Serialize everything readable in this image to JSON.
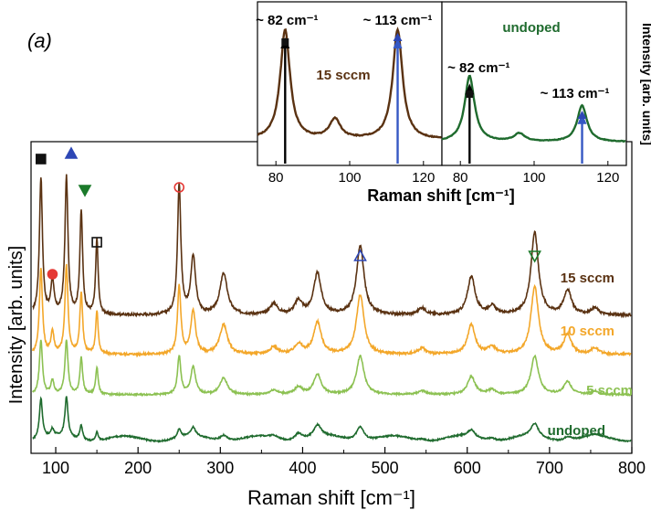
{
  "panel_label": "(a)",
  "colors": {
    "15 sccm": "#5a3212",
    "10 sccm": "#f3a72a",
    "5 sccm": "#8cc152",
    "undoped": "#1f6b2e",
    "square": "#111111",
    "circle": "#e53935",
    "triangle": "#2d47b5",
    "triangle_down": "#1b7a2a",
    "arrow_black": "#000000",
    "arrow_blue": "#3558c4"
  },
  "chart_data": [
    {
      "type": "line",
      "xlabel": "Raman shift [cm⁻¹]",
      "ylabel": "Intensity [arb. units]",
      "xlim": [
        70,
        800
      ],
      "xticks": [
        100,
        200,
        300,
        400,
        500,
        600,
        700,
        800
      ],
      "grid": false,
      "series_labels": [
        "15 sccm",
        "10 sccm",
        "5 sccm",
        "undoped"
      ],
      "peaks": [
        {
          "x": 82,
          "h": [
            1.0,
            0.7,
            0.6,
            0.55
          ]
        },
        {
          "x": 96,
          "h": [
            0.25,
            0.18,
            0.15,
            0.1
          ]
        },
        {
          "x": 113,
          "h": [
            1.0,
            0.72,
            0.6,
            0.55
          ]
        },
        {
          "x": 131,
          "h": [
            0.75,
            0.5,
            0.4,
            0.2
          ]
        },
        {
          "x": 150,
          "h": [
            0.55,
            0.35,
            0.3,
            0.12
          ]
        },
        {
          "x": 250,
          "h": [
            0.95,
            0.55,
            0.42,
            0.12
          ]
        },
        {
          "x": 267,
          "h": [
            0.42,
            0.35,
            0.3,
            0.12
          ]
        },
        {
          "x": 304,
          "h": [
            0.3,
            0.24,
            0.18,
            0.08
          ]
        },
        {
          "x": 365,
          "h": [
            0.08,
            0.06,
            0.05,
            0.04
          ]
        },
        {
          "x": 395,
          "h": [
            0.1,
            0.08,
            0.08,
            0.1
          ]
        },
        {
          "x": 418,
          "h": [
            0.3,
            0.26,
            0.22,
            0.16
          ]
        },
        {
          "x": 470,
          "h": [
            0.5,
            0.48,
            0.42,
            0.2
          ]
        },
        {
          "x": 545,
          "h": [
            0.05,
            0.05,
            0.04,
            0.03
          ]
        },
        {
          "x": 605,
          "h": [
            0.28,
            0.24,
            0.2,
            0.1
          ]
        },
        {
          "x": 630,
          "h": [
            0.06,
            0.06,
            0.05,
            0.04
          ]
        },
        {
          "x": 682,
          "h": [
            0.6,
            0.55,
            0.42,
            0.18
          ]
        },
        {
          "x": 722,
          "h": [
            0.18,
            0.16,
            0.14,
            0.06
          ]
        },
        {
          "x": 755,
          "h": [
            0.05,
            0.05,
            0.04,
            0.03
          ]
        }
      ],
      "markers": [
        {
          "shape": "square-filled",
          "x": 82
        },
        {
          "shape": "circle-filled",
          "x": 96
        },
        {
          "shape": "triangle-up-filled",
          "x": 113
        },
        {
          "shape": "triangle-down-filled",
          "x": 131
        },
        {
          "shape": "square-open",
          "x": 150
        },
        {
          "shape": "circle-open",
          "x": 250
        },
        {
          "shape": "triangle-up-open",
          "x": 470
        },
        {
          "shape": "triangle-down-open",
          "x": 682
        }
      ]
    },
    {
      "type": "line",
      "series_label": "15 sccm",
      "xlabel": "Raman shift [cm⁻¹]",
      "xlim": [
        75,
        125
      ],
      "xticks": [
        80,
        100,
        120
      ],
      "annotations": [
        "~ 82 cm⁻¹",
        "~ 113 cm⁻¹"
      ],
      "peaks": [
        {
          "x": 82.5,
          "h": 1.0
        },
        {
          "x": 96,
          "h": 0.18
        },
        {
          "x": 113,
          "h": 1.0
        }
      ]
    },
    {
      "type": "line",
      "series_label": "undoped",
      "ylabel": "Intensity [arb. units]",
      "xlim": [
        75,
        125
      ],
      "xticks": [
        80,
        100,
        120
      ],
      "annotations": [
        "~ 82 cm⁻¹",
        "~ 113 cm⁻¹"
      ],
      "peaks": [
        {
          "x": 82.5,
          "h": 1.0
        },
        {
          "x": 96,
          "h": 0.12
        },
        {
          "x": 113,
          "h": 0.55
        }
      ]
    }
  ]
}
